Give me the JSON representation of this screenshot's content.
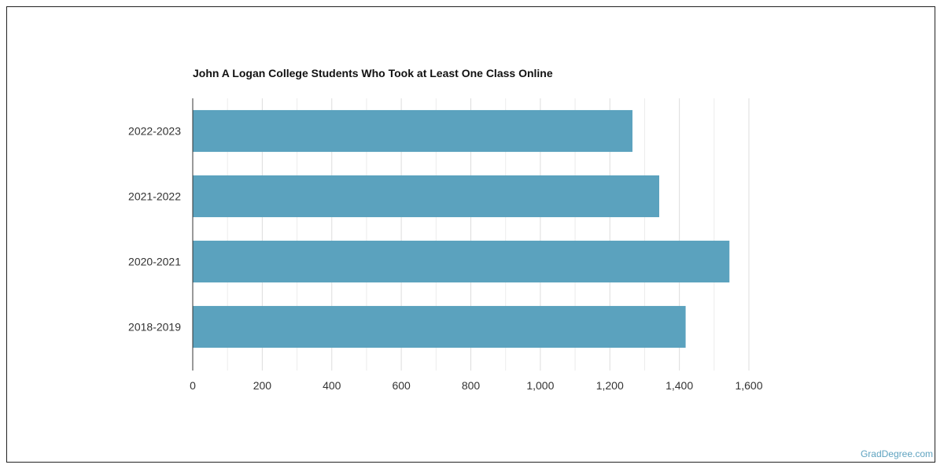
{
  "chart_data": {
    "type": "bar",
    "orientation": "horizontal",
    "title": "John A Logan College Students Who Took at Least One Class Online",
    "categories": [
      "2022-2023",
      "2021-2022",
      "2020-2021",
      "2018-2019"
    ],
    "values": [
      1265,
      1342,
      1544,
      1418
    ],
    "xlim": [
      0,
      1600
    ],
    "xticks": [
      0,
      200,
      400,
      600,
      800,
      1000,
      1200,
      1400,
      1600
    ],
    "xtick_labels": [
      "0",
      "200",
      "400",
      "600",
      "800",
      "1,000",
      "1,200",
      "1,400",
      "1,600"
    ],
    "xlabel": "",
    "ylabel": "",
    "grid": true,
    "bar_color": "#5ba2be",
    "grid_color": "#dddddd"
  },
  "watermark": "GradDegree.com"
}
